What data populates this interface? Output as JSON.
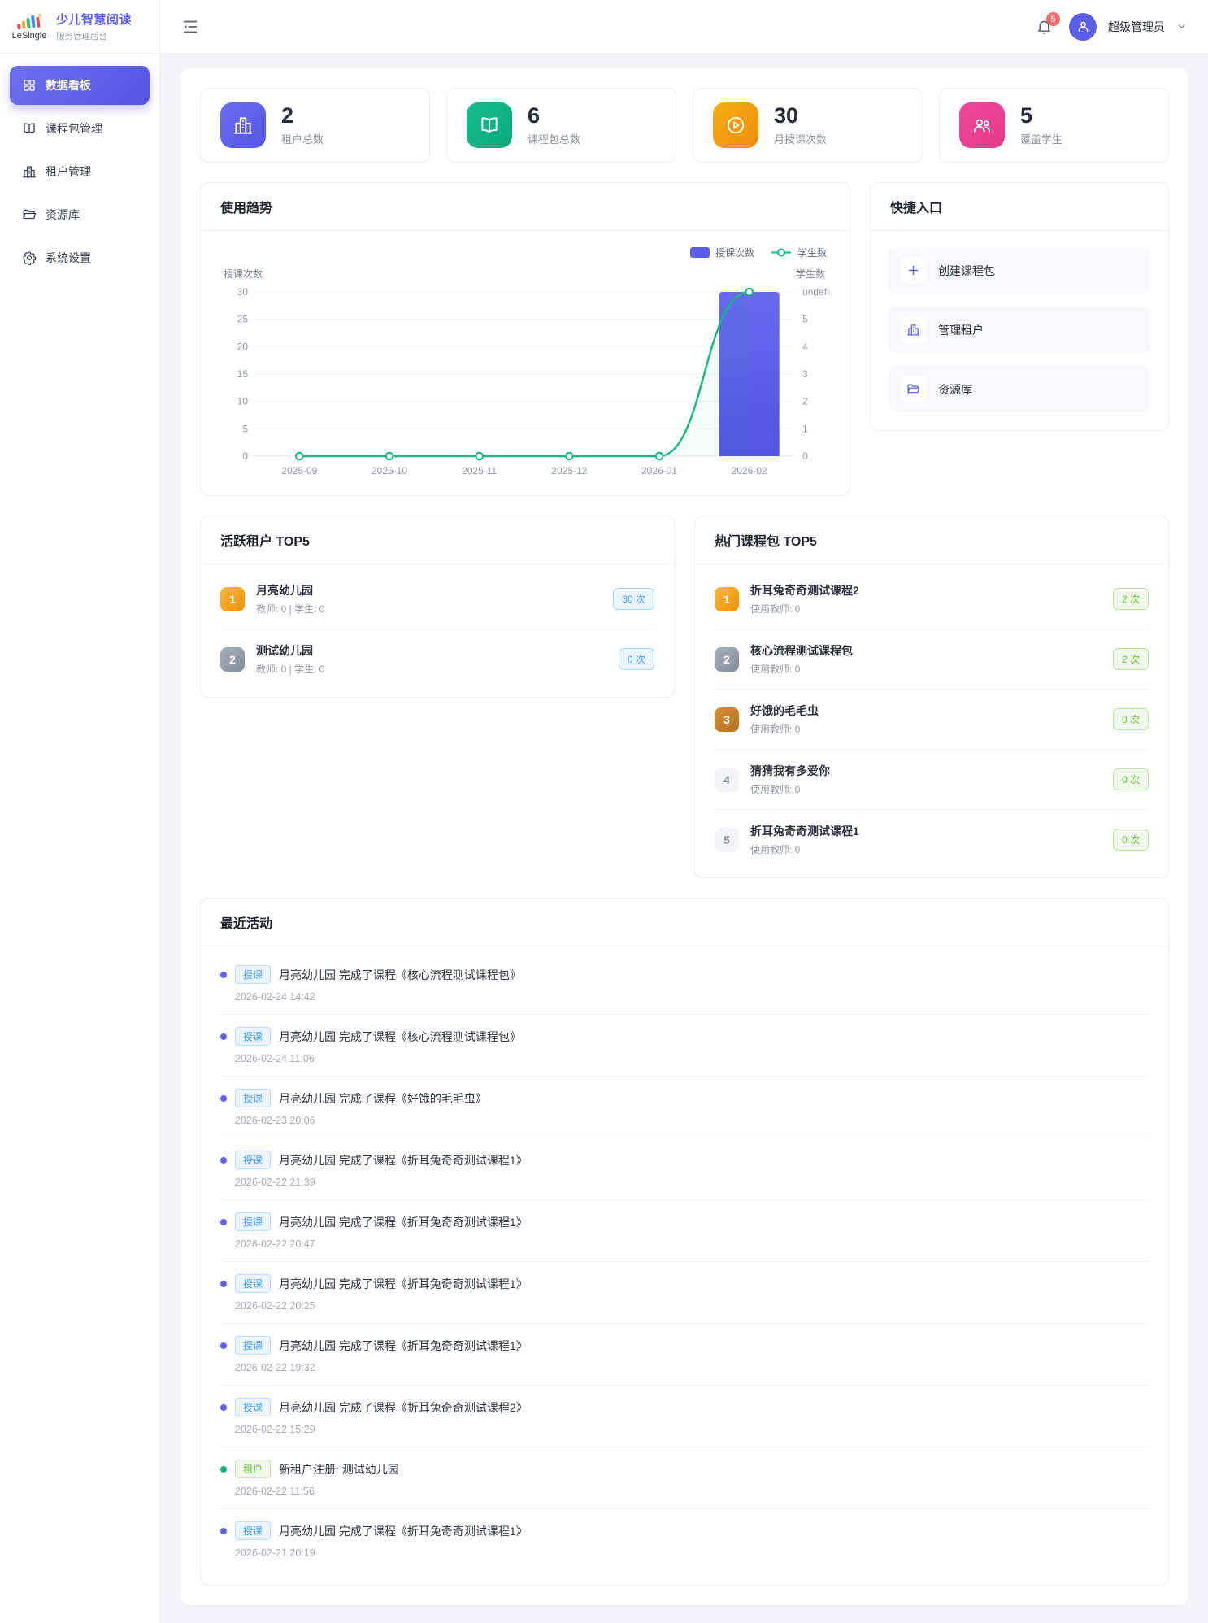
{
  "app": {
    "logo_text": "LeSingle",
    "title": "少儿智慧阅读",
    "subtitle": "服务管理后台"
  },
  "colors": {
    "primary": "#5b5ce8",
    "success_green": "#10b981",
    "tag_blue": "#409eff",
    "tag_green": "#67c23a",
    "badge_red": "#f56c6c",
    "stat_orange": "#f0960f",
    "stat_pink": "#e9408f"
  },
  "icons": {
    "logo": "bar-chart-logo-icon",
    "collapse": "sidebar-fold-icon",
    "notification": "bell-icon",
    "user": "avatar-person-icon",
    "dropdown": "chevron-down-icon",
    "sidebar": [
      "dashboard-grid-icon",
      "book-icon",
      "building-icon",
      "folder-icon",
      "gear-icon"
    ],
    "stats": [
      "building-icon",
      "open-book-icon",
      "play-circle-icon",
      "students-icon"
    ],
    "quick_links": [
      "plus-icon",
      "building-icon",
      "folder-icon"
    ]
  },
  "sidebar": {
    "items": [
      {
        "label": "数据看板",
        "active": true
      },
      {
        "label": "课程包管理",
        "active": false
      },
      {
        "label": "租户管理",
        "active": false
      },
      {
        "label": "资源库",
        "active": false
      },
      {
        "label": "系统设置",
        "active": false
      }
    ]
  },
  "header": {
    "notification_count": "5",
    "user_name": "超级管理员"
  },
  "stats": [
    {
      "value": "2",
      "label": "租户总数"
    },
    {
      "value": "6",
      "label": "课程包总数"
    },
    {
      "value": "30",
      "label": "月授课次数"
    },
    {
      "value": "5",
      "label": "覆盖学生"
    }
  ],
  "usage_trend": {
    "title": "使用趋势"
  },
  "chart_data": {
    "type": "bar+line dual-axis",
    "categories": [
      "2025-09",
      "2025-10",
      "2025-11",
      "2025-12",
      "2026-01",
      "2026-02"
    ],
    "series": [
      {
        "name": "授课次数",
        "type": "bar",
        "axis": "left",
        "color": "#5b5ce8",
        "values": [
          0,
          0,
          0,
          0,
          0,
          30
        ]
      },
      {
        "name": "学生数",
        "type": "line",
        "axis": "right",
        "color": "#10b981",
        "values": [
          0,
          0,
          0,
          0,
          0,
          5
        ]
      }
    ],
    "left_axis": {
      "name": "授课次数",
      "min": 0,
      "max": 30,
      "ticks": [
        0,
        5,
        10,
        15,
        20,
        25,
        30
      ]
    },
    "right_axis": {
      "name": "学生数",
      "min": 0,
      "max": 5,
      "ticks": [
        0,
        1,
        2,
        3,
        4,
        5
      ]
    },
    "legend": [
      "授课次数",
      "学生数"
    ],
    "legend_position": "top-right",
    "grid": true
  },
  "quick_links": {
    "title": "快捷入口",
    "items": [
      {
        "label": "创建课程包"
      },
      {
        "label": "管理租户"
      },
      {
        "label": "资源库"
      }
    ]
  },
  "active_tenants": {
    "title": "活跃租户 TOP5",
    "items": [
      {
        "rank": "1",
        "name": "月亮幼儿园",
        "meta": "教师: 0 | 学生: 0",
        "count": "30 次"
      },
      {
        "rank": "2",
        "name": "测试幼儿园",
        "meta": "教师: 0 | 学生: 0",
        "count": "0 次"
      }
    ]
  },
  "hot_packages": {
    "title": "热门课程包 TOP5",
    "items": [
      {
        "rank": "1",
        "name": "折耳兔奇奇测试课程2",
        "meta": "使用教师: 0",
        "count": "2 次"
      },
      {
        "rank": "2",
        "name": "核心流程测试课程包",
        "meta": "使用教师: 0",
        "count": "2 次"
      },
      {
        "rank": "3",
        "name": "好饿的毛毛虫",
        "meta": "使用教师: 0",
        "count": "0 次"
      },
      {
        "rank": "4",
        "name": "猜猜我有多爱你",
        "meta": "使用教师: 0",
        "count": "0 次"
      },
      {
        "rank": "5",
        "name": "折耳兔奇奇测试课程1",
        "meta": "使用教师: 0",
        "count": "0 次"
      }
    ]
  },
  "recent_activities": {
    "title": "最近活动",
    "items": [
      {
        "kind": "teach",
        "tag": "授课",
        "text": "月亮幼儿园 完成了课程《核心流程测试课程包》",
        "time": "2026-02-24 14:42"
      },
      {
        "kind": "teach",
        "tag": "授课",
        "text": "月亮幼儿园 完成了课程《核心流程测试课程包》",
        "time": "2026-02-24 11:06"
      },
      {
        "kind": "teach",
        "tag": "授课",
        "text": "月亮幼儿园 完成了课程《好饿的毛毛虫》",
        "time": "2026-02-23 20:06"
      },
      {
        "kind": "teach",
        "tag": "授课",
        "text": "月亮幼儿园 完成了课程《折耳兔奇奇测试课程1》",
        "time": "2026-02-22 21:39"
      },
      {
        "kind": "teach",
        "tag": "授课",
        "text": "月亮幼儿园 完成了课程《折耳兔奇奇测试课程1》",
        "time": "2026-02-22 20:47"
      },
      {
        "kind": "teach",
        "tag": "授课",
        "text": "月亮幼儿园 完成了课程《折耳兔奇奇测试课程1》",
        "time": "2026-02-22 20:25"
      },
      {
        "kind": "teach",
        "tag": "授课",
        "text": "月亮幼儿园 完成了课程《折耳兔奇奇测试课程1》",
        "time": "2026-02-22 19:32"
      },
      {
        "kind": "teach",
        "tag": "授课",
        "text": "月亮幼儿园 完成了课程《折耳兔奇奇测试课程2》",
        "time": "2026-02-22 15:29"
      },
      {
        "kind": "tenant",
        "tag": "租户",
        "text": "新租户注册: 测试幼儿园",
        "time": "2026-02-22 11:56"
      },
      {
        "kind": "teach",
        "tag": "授课",
        "text": "月亮幼儿园 完成了课程《折耳兔奇奇测试课程1》",
        "time": "2026-02-21 20:19"
      }
    ]
  }
}
